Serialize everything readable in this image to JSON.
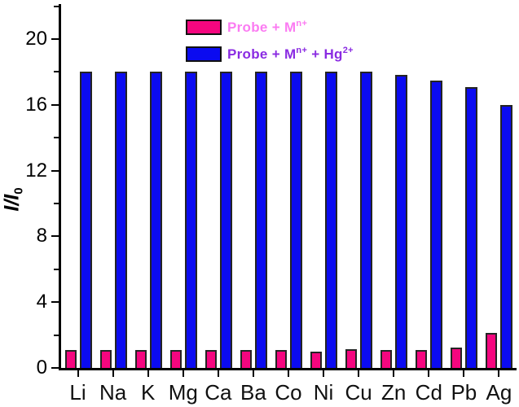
{
  "chart_data": {
    "type": "bar",
    "title": "",
    "categories": [
      "Li",
      "Na",
      "K",
      "Mg",
      "Ca",
      "Ba",
      "Co",
      "Ni",
      "Cu",
      "Zn",
      "Cd",
      "Pb",
      "Ag"
    ],
    "series": [
      {
        "name": "Probe + Mn+",
        "color": "#F5067F",
        "values": [
          1.1,
          1.1,
          1.1,
          1.1,
          1.1,
          1.1,
          1.1,
          1.0,
          1.15,
          1.1,
          1.1,
          1.25,
          2.15
        ]
      },
      {
        "name": "Probe + Mn+ + Hg2+",
        "color": "#0B0BF0",
        "values": [
          18,
          18,
          18,
          18,
          18,
          18,
          18,
          18,
          18,
          17.8,
          17.5,
          17.1,
          16.0
        ]
      }
    ],
    "xlabel": "",
    "ylabel": "I/I0",
    "ylabel_segments": [
      {
        "t": "I",
        "italic": true
      },
      {
        "t": "/",
        "italic": true
      },
      {
        "t": "I",
        "italic": true
      },
      {
        "t": "0",
        "sub": true
      }
    ],
    "ylim": [
      0,
      22.1
    ],
    "yticks_major": [
      0,
      4,
      8,
      12,
      16,
      20
    ],
    "yticks_minor": [
      2,
      6,
      10,
      14,
      18,
      22
    ],
    "grid": false,
    "legend_position": "top-center",
    "legend": [
      {
        "series_index": 0,
        "swatch_color": "#F5067F",
        "text_color": "#FB7BF2",
        "segments": [
          {
            "t": "Probe + M"
          },
          {
            "t": "n+",
            "sup": true
          }
        ]
      },
      {
        "series_index": 1,
        "swatch_color": "#0B0BF0",
        "text_color": "#8A2BE2",
        "segments": [
          {
            "t": "Probe + M"
          },
          {
            "t": "n+",
            "sup": true
          },
          {
            "t": " + Hg"
          },
          {
            "t": "2+",
            "sup": true
          }
        ]
      }
    ]
  },
  "colors": {
    "axis": "#000000",
    "background": "#FFFFFF",
    "bar_outline": "#242424"
  }
}
